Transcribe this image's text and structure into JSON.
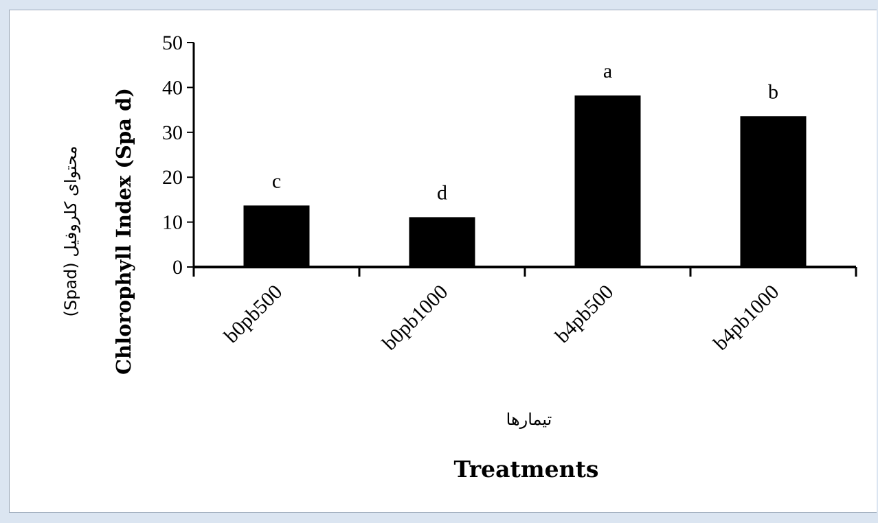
{
  "chart_data": {
    "type": "bar",
    "categories": [
      "b0pb500",
      "b0pb1000",
      "b4pb500",
      "b4pb1000"
    ],
    "values": [
      13.7,
      11.1,
      38.2,
      33.6
    ],
    "data_labels": [
      "c",
      "d",
      "a",
      "b"
    ],
    "ylim": [
      0,
      50
    ],
    "yticks": [
      0,
      10,
      20,
      30,
      40,
      50
    ],
    "ylabel": "Chlorophyll Index (Spa  d)",
    "ylabel_fa": "محتوای کلروفیل (Spad)",
    "xlabel": "Treatments",
    "xlabel_fa": "تیمارها",
    "bar_color": "#000000",
    "grid": false,
    "legend": "none"
  }
}
